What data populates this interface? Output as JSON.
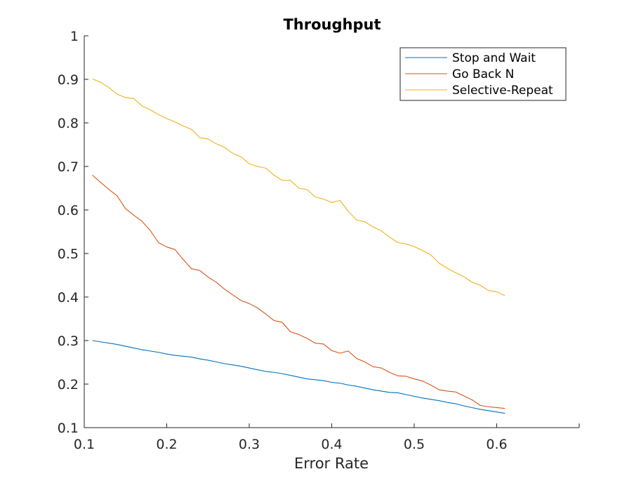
{
  "chart_data": {
    "type": "line",
    "title": "Throughput",
    "xlabel": "Error Rate",
    "ylabel": "",
    "xlim": [
      0.1,
      0.7
    ],
    "ylim": [
      0.1,
      1.0
    ],
    "x_ticks": [
      "0.1",
      "0.2",
      "0.3",
      "0.4",
      "0.5",
      "0.6"
    ],
    "y_ticks": [
      "0.1",
      "0.2",
      "0.3",
      "0.4",
      "0.5",
      "0.6",
      "0.7",
      "0.8",
      "0.9",
      "1"
    ],
    "grid": false,
    "legend_position": "top-right",
    "x": [
      0.11,
      0.12,
      0.13,
      0.14,
      0.15,
      0.16,
      0.17,
      0.18,
      0.19,
      0.2,
      0.21,
      0.22,
      0.23,
      0.24,
      0.25,
      0.26,
      0.27,
      0.28,
      0.29,
      0.3,
      0.31,
      0.32,
      0.33,
      0.34,
      0.35,
      0.36,
      0.37,
      0.38,
      0.39,
      0.4,
      0.41,
      0.42,
      0.43,
      0.44,
      0.45,
      0.46,
      0.47,
      0.48,
      0.49,
      0.5,
      0.51,
      0.52,
      0.53,
      0.54,
      0.55,
      0.56,
      0.57,
      0.58,
      0.59,
      0.6,
      0.61
    ],
    "series": [
      {
        "name": "Stop and Wait",
        "color": "#0072BD",
        "values": [
          0.3,
          0.297,
          0.294,
          0.291,
          0.287,
          0.283,
          0.279,
          0.276,
          0.273,
          0.269,
          0.266,
          0.264,
          0.262,
          0.258,
          0.255,
          0.251,
          0.247,
          0.244,
          0.241,
          0.237,
          0.233,
          0.229,
          0.227,
          0.224,
          0.22,
          0.216,
          0.212,
          0.21,
          0.208,
          0.204,
          0.202,
          0.198,
          0.195,
          0.191,
          0.187,
          0.184,
          0.181,
          0.18,
          0.176,
          0.172,
          0.168,
          0.165,
          0.162,
          0.158,
          0.155,
          0.15,
          0.146,
          0.142,
          0.139,
          0.136,
          0.133
        ]
      },
      {
        "name": "Go Back N",
        "color": "#D95319",
        "values": [
          0.68,
          0.663,
          0.647,
          0.632,
          0.603,
          0.588,
          0.574,
          0.553,
          0.525,
          0.515,
          0.509,
          0.486,
          0.465,
          0.461,
          0.446,
          0.434,
          0.418,
          0.405,
          0.392,
          0.385,
          0.375,
          0.361,
          0.346,
          0.342,
          0.32,
          0.314,
          0.305,
          0.294,
          0.292,
          0.277,
          0.271,
          0.276,
          0.259,
          0.251,
          0.24,
          0.237,
          0.227,
          0.219,
          0.218,
          0.212,
          0.207,
          0.198,
          0.187,
          0.184,
          0.182,
          0.173,
          0.164,
          0.151,
          0.148,
          0.146,
          0.144
        ]
      },
      {
        "name": "Selective-Repeat",
        "color": "#EDB120",
        "values": [
          0.901,
          0.893,
          0.881,
          0.866,
          0.858,
          0.856,
          0.839,
          0.83,
          0.819,
          0.81,
          0.802,
          0.793,
          0.785,
          0.766,
          0.763,
          0.752,
          0.744,
          0.73,
          0.722,
          0.706,
          0.7,
          0.696,
          0.68,
          0.668,
          0.668,
          0.65,
          0.647,
          0.63,
          0.625,
          0.617,
          0.622,
          0.597,
          0.577,
          0.573,
          0.561,
          0.552,
          0.538,
          0.525,
          0.522,
          0.516,
          0.507,
          0.497,
          0.478,
          0.466,
          0.456,
          0.447,
          0.434,
          0.427,
          0.415,
          0.412,
          0.403
        ]
      }
    ]
  }
}
